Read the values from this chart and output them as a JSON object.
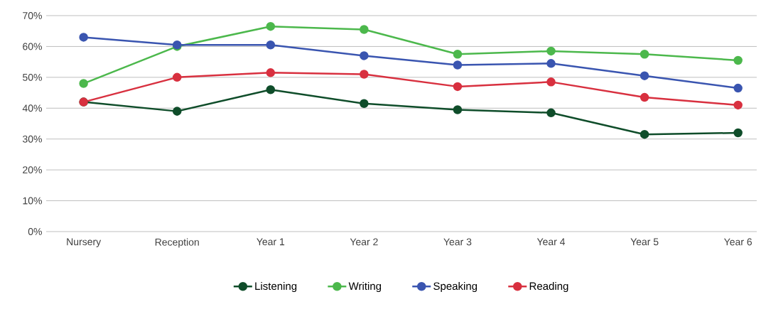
{
  "chart_data": {
    "type": "line",
    "categories": [
      "Nursery",
      "Reception",
      "Year 1",
      "Year 2",
      "Year 3",
      "Year 4",
      "Year 5",
      "Year 6"
    ],
    "series": [
      {
        "name": "Listening",
        "color": "#0f4d2a",
        "values": [
          42,
          39,
          46,
          41.5,
          39.5,
          38.5,
          31.5,
          32
        ]
      },
      {
        "name": "Writing",
        "color": "#4cb84c",
        "values": [
          48,
          60,
          66.5,
          65.5,
          57.5,
          58.5,
          57.5,
          55.5
        ]
      },
      {
        "name": "Speaking",
        "color": "#3a55b0",
        "values": [
          63,
          60.5,
          60.5,
          57,
          54,
          54.5,
          50.5,
          46.5
        ]
      },
      {
        "name": "Reading",
        "color": "#d8303f",
        "values": [
          42,
          50,
          51.5,
          51,
          47,
          48.5,
          43.5,
          41
        ]
      }
    ],
    "ylim": [
      0,
      70
    ],
    "yticks": [
      {
        "value": 0,
        "label": "0%"
      },
      {
        "value": 10,
        "label": "10%"
      },
      {
        "value": 20,
        "label": "20%"
      },
      {
        "value": 30,
        "label": "30%"
      },
      {
        "value": 40,
        "label": "40%"
      },
      {
        "value": 50,
        "label": "50%"
      },
      {
        "value": 60,
        "label": "60%"
      },
      {
        "value": 70,
        "label": "70%"
      }
    ],
    "grid": "y",
    "legend": "bottom",
    "marker": "circle",
    "line_style": "solid"
  }
}
